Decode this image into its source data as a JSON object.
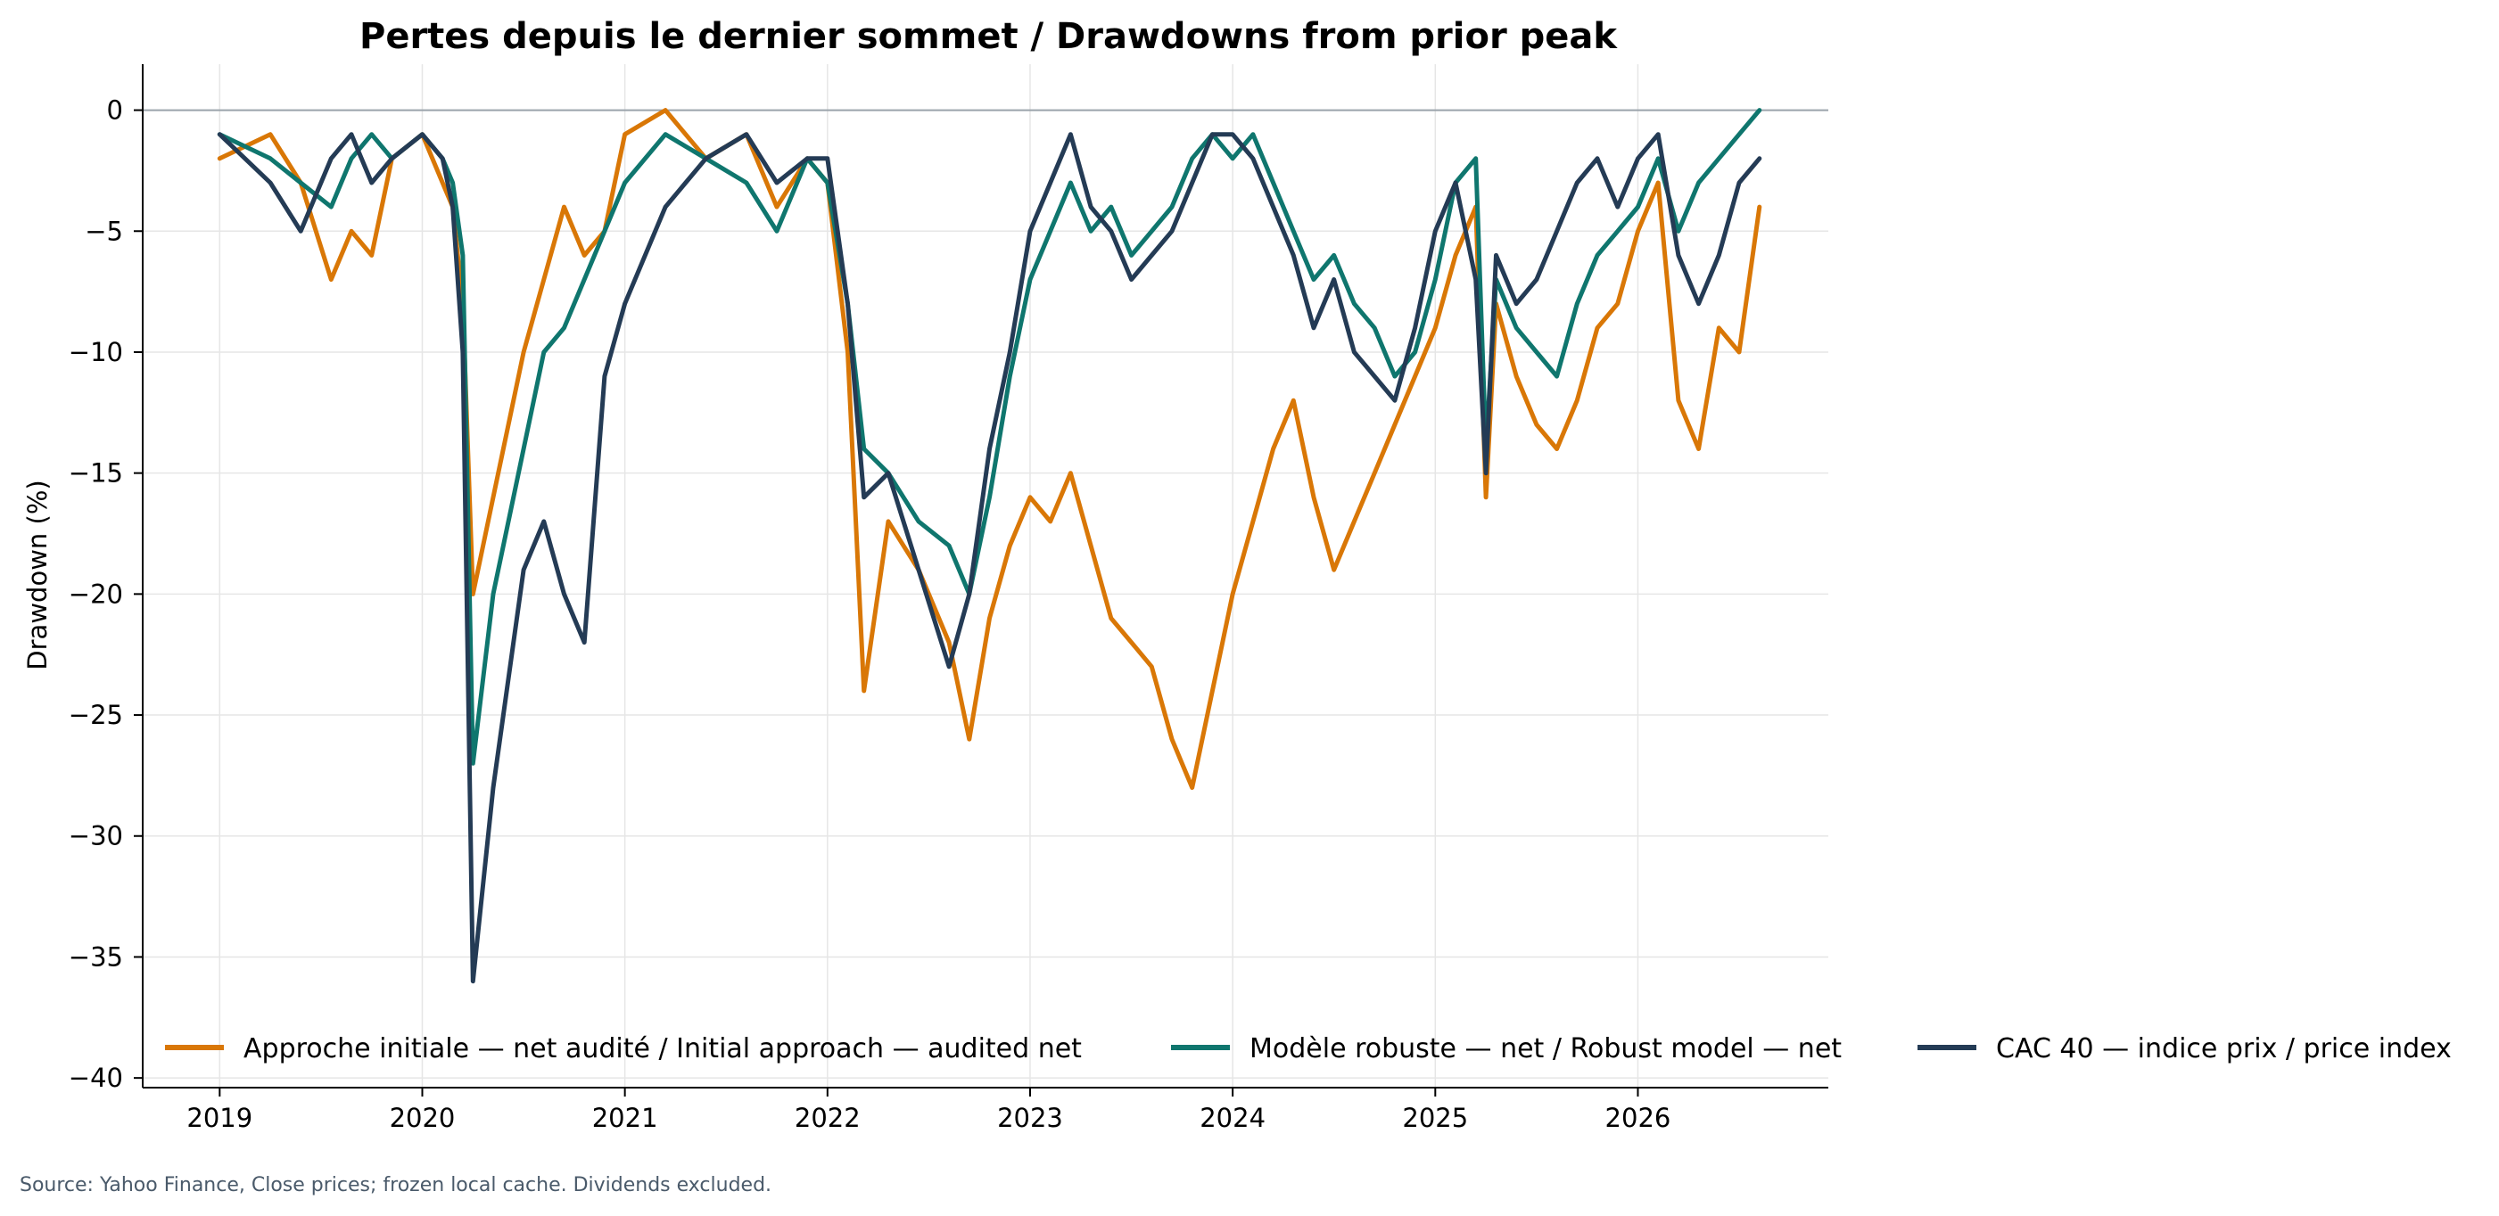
{
  "chart_data": {
    "type": "line",
    "title": "Pertes depuis le dernier sommet / Drawdowns from prior peak",
    "xlabel": "",
    "ylabel": "Drawdown (%)",
    "xlim": [
      2018.62,
      2026.94
    ],
    "ylim": [
      -40.4,
      1.9
    ],
    "x_ticks": [
      "2019",
      "2020",
      "2021",
      "2022",
      "2023",
      "2024",
      "2025",
      "2026"
    ],
    "y_ticks": [
      0,
      -5,
      -10,
      -15,
      -20,
      -25,
      -30,
      -35,
      -40
    ],
    "zero_line": true,
    "grid": true,
    "legend_position": "bottom",
    "source_note": "Source: Yahoo Finance, Close prices; frozen local cache. Dividends excluded.",
    "x": [
      2019.0,
      2019.25,
      2019.4,
      2019.55,
      2019.65,
      2019.75,
      2019.85,
      2020.0,
      2020.1,
      2020.15,
      2020.2,
      2020.25,
      2020.35,
      2020.5,
      2020.6,
      2020.7,
      2020.8,
      2020.9,
      2021.0,
      2021.2,
      2021.4,
      2021.6,
      2021.75,
      2021.9,
      2022.0,
      2022.1,
      2022.18,
      2022.3,
      2022.45,
      2022.6,
      2022.7,
      2022.8,
      2022.9,
      2023.0,
      2023.1,
      2023.2,
      2023.3,
      2023.4,
      2023.5,
      2023.6,
      2023.7,
      2023.8,
      2023.9,
      2024.0,
      2024.1,
      2024.2,
      2024.3,
      2024.4,
      2024.5,
      2024.6,
      2024.7,
      2024.8,
      2024.9,
      2025.0,
      2025.1,
      2025.2,
      2025.25,
      2025.3,
      2025.4,
      2025.5,
      2025.6,
      2025.7,
      2025.8,
      2025.9,
      2026.0,
      2026.1,
      2026.2,
      2026.3,
      2026.4,
      2026.5,
      2026.6
    ],
    "series": [
      {
        "name": "Approche initiale — net audité / Initial approach — audited net",
        "color": "#d97706",
        "values": [
          -2,
          -1,
          -3,
          -7,
          -5,
          -6,
          -2,
          -1,
          -3,
          -4,
          -8,
          -20,
          -16,
          -10,
          -7,
          -4,
          -6,
          -5,
          -1,
          0,
          -2,
          -1,
          -4,
          -2,
          -3,
          -10,
          -24,
          -17,
          -19,
          -22,
          -26,
          -21,
          -18,
          -16,
          -17,
          -15,
          -18,
          -21,
          -22,
          -23,
          -26,
          -28,
          -24,
          -20,
          -17,
          -14,
          -12,
          -16,
          -19,
          -17,
          -15,
          -13,
          -11,
          -9,
          -6,
          -4,
          -16,
          -8,
          -11,
          -13,
          -14,
          -12,
          -9,
          -8,
          -5,
          -3,
          -12,
          -14,
          -9,
          -10,
          -4
        ]
      },
      {
        "name": "Modèle robuste — net / Robust model — net",
        "color": "#0f766e",
        "values": [
          -1,
          -2,
          -3,
          -4,
          -2,
          -1,
          -2,
          -1,
          -2,
          -3,
          -6,
          -27,
          -20,
          -14,
          -10,
          -9,
          -7,
          -5,
          -3,
          -1,
          -2,
          -3,
          -5,
          -2,
          -3,
          -8,
          -14,
          -15,
          -17,
          -18,
          -20,
          -16,
          -11,
          -7,
          -5,
          -3,
          -5,
          -4,
          -6,
          -5,
          -4,
          -2,
          -1,
          -2,
          -1,
          -3,
          -5,
          -7,
          -6,
          -8,
          -9,
          -11,
          -10,
          -7,
          -3,
          -2,
          -14,
          -7,
          -9,
          -10,
          -11,
          -8,
          -6,
          -5,
          -4,
          -2,
          -5,
          -3,
          -2,
          -1,
          0
        ]
      },
      {
        "name": "CAC 40 — indice prix / price index",
        "color": "#243b55",
        "values": [
          -1,
          -3,
          -5,
          -2,
          -1,
          -3,
          -2,
          -1,
          -2,
          -4,
          -10,
          -36,
          -28,
          -19,
          -17,
          -20,
          -22,
          -11,
          -8,
          -4,
          -2,
          -1,
          -3,
          -2,
          -2,
          -8,
          -16,
          -15,
          -19,
          -23,
          -20,
          -14,
          -10,
          -5,
          -3,
          -1,
          -4,
          -5,
          -7,
          -6,
          -5,
          -3,
          -1,
          -1,
          -2,
          -4,
          -6,
          -9,
          -7,
          -10,
          -11,
          -12,
          -9,
          -5,
          -3,
          -7,
          -15,
          -6,
          -8,
          -7,
          -5,
          -3,
          -2,
          -4,
          -2,
          -1,
          -6,
          -8,
          -6,
          -3,
          -2
        ]
      }
    ]
  }
}
